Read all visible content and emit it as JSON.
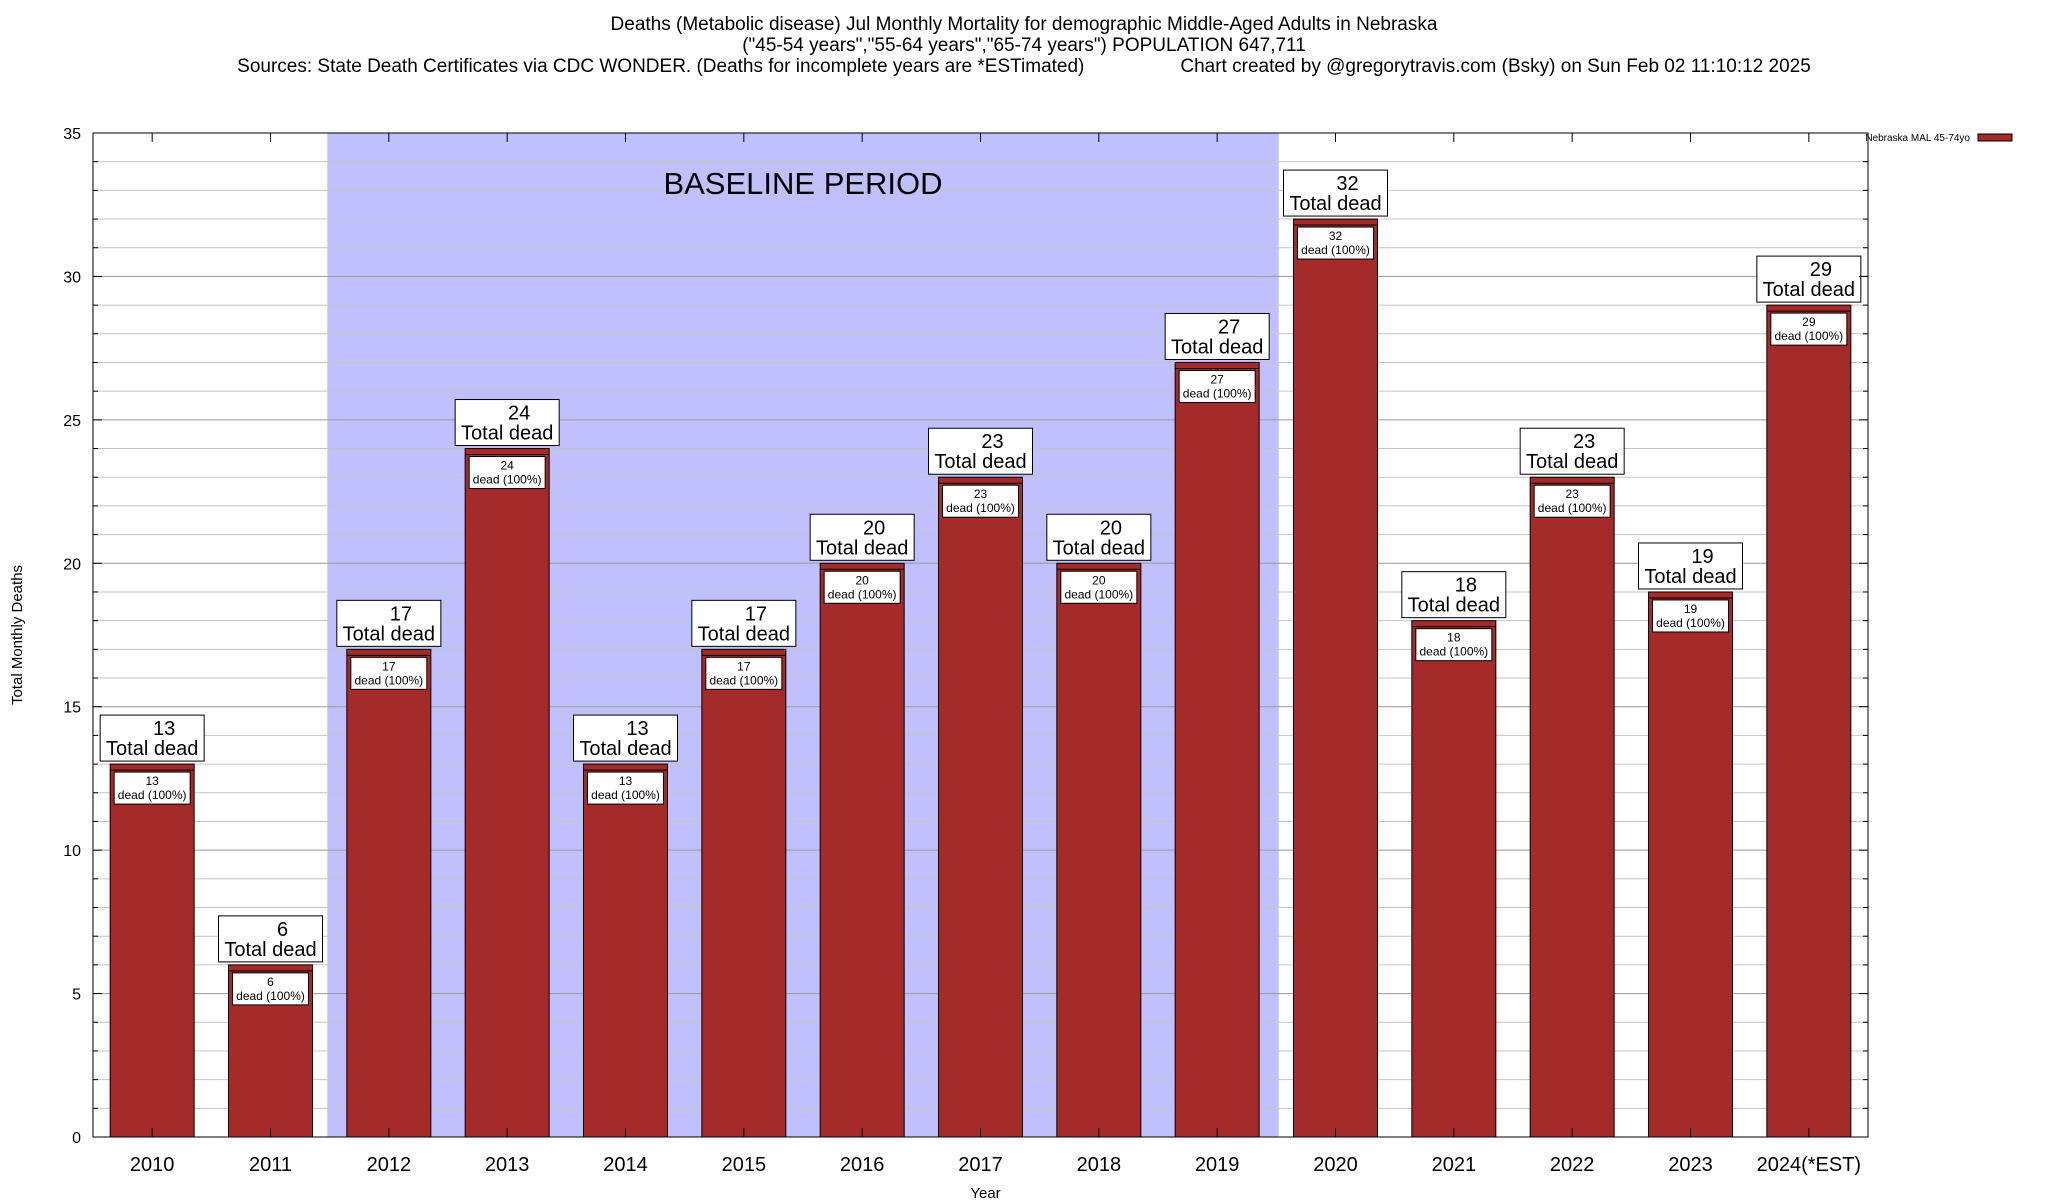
{
  "chart_data": {
    "type": "bar",
    "title": "Deaths (Metabolic disease) Jul Monthly Mortality for demographic Middle-Aged Adults in Nebraska",
    "subtitle": "(\"45-54 years\",\"55-64 years\",\"65-74 years\") POPULATION 647,711",
    "sources": "Sources: State Death Certificates via CDC WONDER. (Deaths for incomplete years are *ESTimated)",
    "credit": "Chart created by @gregorytravis.com (Bsky) on Sun Feb 02 11:10:12 2025",
    "xlabel": "Year",
    "ylabel": "Total Monthly Deaths",
    "ylim": [
      0,
      35
    ],
    "y_ticks": [
      0,
      5,
      10,
      15,
      20,
      25,
      30,
      35
    ],
    "grid": true,
    "legend_position": "top-right",
    "baseline": {
      "label": "BASELINE PERIOD",
      "start": "2012",
      "end": "2019",
      "color": "#c0c0ff"
    },
    "categories": [
      "2010",
      "2011",
      "2012",
      "2013",
      "2014",
      "2015",
      "2016",
      "2017",
      "2018",
      "2019",
      "2020",
      "2021",
      "2022",
      "2023",
      "2024(*EST)"
    ],
    "series": [
      {
        "name": "Nebraska MAL 45-74yo",
        "color": "#a52a2a",
        "values": [
          13,
          6,
          17,
          24,
          13,
          17,
          20,
          23,
          20,
          27,
          32,
          18,
          23,
          19,
          29
        ]
      }
    ],
    "total_label": "Total dead",
    "inner_label": "dead (100%)"
  }
}
